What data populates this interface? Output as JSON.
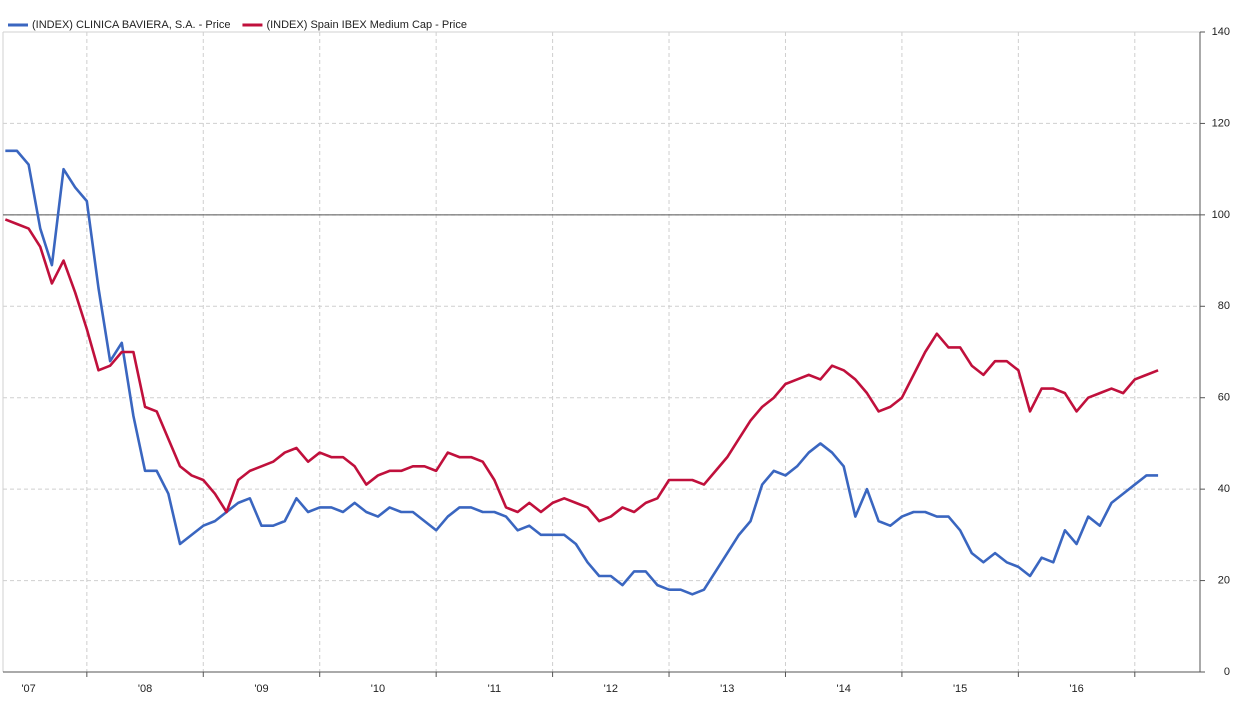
{
  "chart_data": {
    "type": "line",
    "x": [
      2007.3,
      2007.4,
      2007.5,
      2007.6,
      2007.7,
      2007.8,
      2007.9,
      2008.0,
      2008.1,
      2008.2,
      2008.3,
      2008.4,
      2008.5,
      2008.6,
      2008.7,
      2008.8,
      2008.9,
      2009.0,
      2009.1,
      2009.2,
      2009.3,
      2009.4,
      2009.5,
      2009.6,
      2009.7,
      2009.8,
      2009.9,
      2010.0,
      2010.1,
      2010.2,
      2010.3,
      2010.4,
      2010.5,
      2010.6,
      2010.7,
      2010.8,
      2010.9,
      2011.0,
      2011.1,
      2011.2,
      2011.3,
      2011.4,
      2011.5,
      2011.6,
      2011.7,
      2011.8,
      2011.9,
      2012.0,
      2012.1,
      2012.2,
      2012.3,
      2012.4,
      2012.5,
      2012.6,
      2012.7,
      2012.8,
      2012.9,
      2013.0,
      2013.1,
      2013.2,
      2013.3,
      2013.4,
      2013.5,
      2013.6,
      2013.7,
      2013.8,
      2013.9,
      2014.0,
      2014.1,
      2014.2,
      2014.3,
      2014.4,
      2014.5,
      2014.6,
      2014.7,
      2014.8,
      2014.9,
      2015.0,
      2015.1,
      2015.2,
      2015.3,
      2015.4,
      2015.5,
      2015.6,
      2015.7,
      2015.8,
      2015.9,
      2016.0,
      2016.1,
      2016.2,
      2016.3,
      2016.4,
      2016.5,
      2016.6,
      2016.7,
      2016.8,
      2016.9,
      2017.0,
      2017.1,
      2017.2
    ],
    "series": [
      {
        "name": "(INDEX) CLINICA BAVIERA, S.A. - Price",
        "color": "#3a66c0",
        "values": [
          114,
          114,
          111,
          97,
          89,
          110,
          106,
          103,
          84,
          68,
          72,
          56,
          44,
          44,
          39,
          28,
          30,
          32,
          33,
          35,
          37,
          38,
          32,
          32,
          33,
          38,
          35,
          36,
          36,
          35,
          37,
          35,
          34,
          36,
          35,
          35,
          33,
          31,
          34,
          36,
          36,
          35,
          35,
          34,
          31,
          32,
          30,
          30,
          30,
          28,
          24,
          21,
          21,
          19,
          22,
          22,
          19,
          18,
          18,
          17,
          18,
          22,
          26,
          30,
          33,
          41,
          44,
          43,
          45,
          48,
          50,
          48,
          45,
          34,
          40,
          33,
          32,
          34,
          35,
          35,
          34,
          34,
          31,
          26,
          24,
          26,
          24,
          23,
          21,
          25,
          24,
          31,
          28,
          34,
          32,
          37,
          39,
          41,
          43,
          43
        ]
      },
      {
        "name": "(INDEX) Spain IBEX Medium Cap - Price",
        "color": "#c0103c",
        "values": [
          99,
          98,
          97,
          93,
          85,
          90,
          83,
          75,
          66,
          67,
          70,
          70,
          58,
          57,
          51,
          45,
          43,
          42,
          39,
          35,
          42,
          44,
          45,
          46,
          48,
          49,
          46,
          48,
          47,
          47,
          45,
          41,
          43,
          44,
          44,
          45,
          45,
          44,
          48,
          47,
          47,
          46,
          42,
          36,
          35,
          37,
          35,
          37,
          38,
          37,
          36,
          33,
          34,
          36,
          35,
          37,
          38,
          42,
          42,
          42,
          41,
          44,
          47,
          51,
          55,
          58,
          60,
          63,
          64,
          65,
          64,
          67,
          66,
          64,
          61,
          57,
          58,
          60,
          65,
          70,
          74,
          71,
          71,
          67,
          65,
          68,
          68,
          66,
          57,
          62,
          62,
          61,
          57,
          60,
          61,
          62,
          61,
          64,
          65,
          66
        ]
      }
    ],
    "xlim": [
      2007.28,
      2017.56
    ],
    "xticks": [
      {
        "value": 2007.5,
        "label": "'07"
      },
      {
        "value": 2008.5,
        "label": "'08"
      },
      {
        "value": 2009.5,
        "label": "'09"
      },
      {
        "value": 2010.5,
        "label": "'10"
      },
      {
        "value": 2011.5,
        "label": "'11"
      },
      {
        "value": 2012.5,
        "label": "'12"
      },
      {
        "value": 2013.5,
        "label": "'13"
      },
      {
        "value": 2014.5,
        "label": "'14"
      },
      {
        "value": 2015.5,
        "label": "'15"
      },
      {
        "value": 2016.5,
        "label": "'16"
      }
    ],
    "xgrid": [
      2008,
      2009,
      2010,
      2011,
      2012,
      2013,
      2014,
      2015,
      2016,
      2017
    ],
    "ylim": [
      0,
      140
    ],
    "yticks": [
      0,
      20,
      40,
      60,
      80,
      100,
      120,
      140
    ],
    "reference_line": 100,
    "grid": true,
    "legend": "top-left"
  }
}
